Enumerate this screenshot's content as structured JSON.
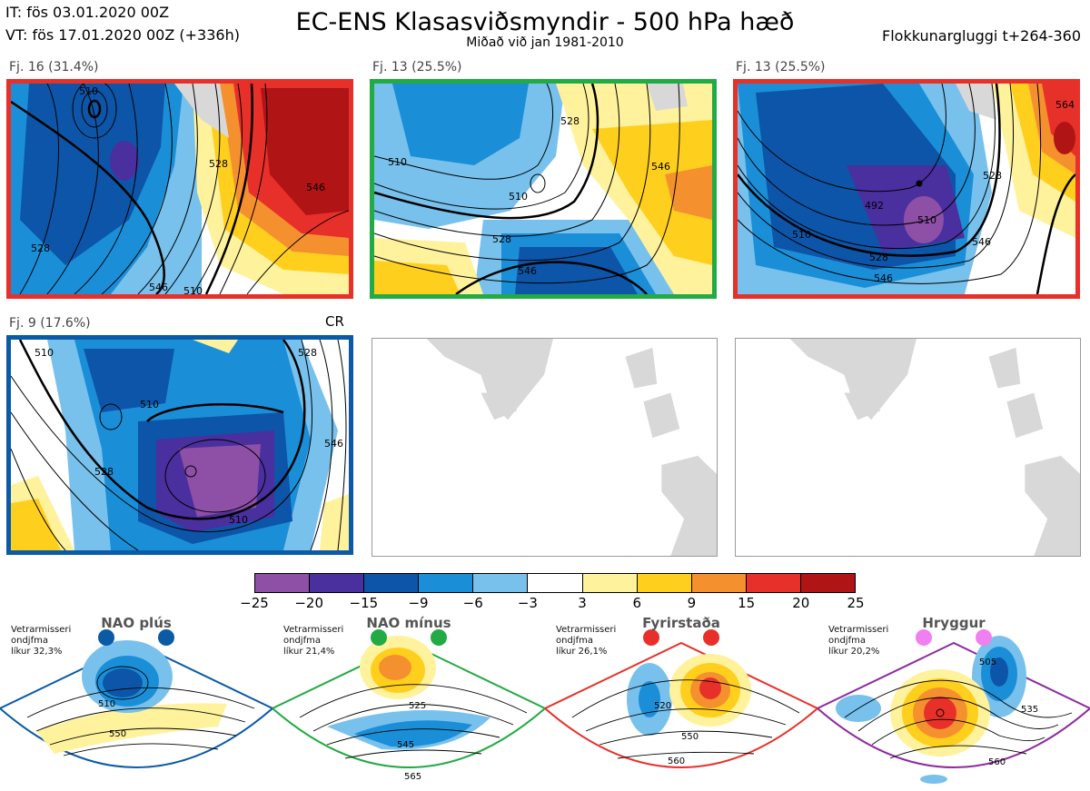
{
  "header": {
    "init": "IT: fös 03.01.2020 00Z",
    "valid": "VT: fös 17.01.2020 00Z  (+336h)",
    "title": "EC-ENS Klasasviðsmyndir - 500 hPa hæð",
    "subtitle": "Miðað við jan 1981-2010",
    "window": "Flokkunargluggi t+264-360"
  },
  "panels": [
    {
      "label": "Fj. 16 (31.4%)",
      "border_color": "#e8302a",
      "contour_labels": [
        "510",
        "528",
        "546",
        "528",
        "546",
        "510"
      ]
    },
    {
      "label": "Fj. 13 (25.5%)",
      "border_color": "#22aa44",
      "contour_labels": [
        "510",
        "528",
        "546",
        "510",
        "528",
        "546"
      ]
    },
    {
      "label": "Fj. 13 (25.5%)",
      "border_color": "#e8302a",
      "contour_labels": [
        "492",
        "510",
        "528",
        "546",
        "510",
        "546",
        "528",
        "564"
      ]
    },
    {
      "label": "Fj. 9 (17.6%)",
      "border_color": "#0a5aa6",
      "contour_labels": [
        "510",
        "528",
        "510",
        "528",
        "546",
        "510"
      ]
    }
  ],
  "cr_label": "CR",
  "colorbar": {
    "colors": [
      "#8e4fa7",
      "#4a2f9e",
      "#0d55a8",
      "#1a8fd8",
      "#78c1ec",
      "#ffffff",
      "#fff29c",
      "#ffcf1e",
      "#f5902e",
      "#e8302a",
      "#b01414"
    ],
    "ticks": [
      "−25",
      "−20",
      "−15",
      "−9",
      "−6",
      "−3",
      "3",
      "6",
      "9",
      "15",
      "20",
      "25"
    ]
  },
  "regimes": [
    {
      "name": "NAO plús",
      "info": "Vetrarmisseri\nondjfma\nlíkur 32,3%",
      "border_color": "#0a5aa6",
      "dot_color": "#0a5aa6",
      "contour_labels": [
        "510",
        "550"
      ]
    },
    {
      "name": "NAO mínus",
      "info": "Vetrarmisseri\nondjfma\nlíkur 21,4%",
      "border_color": "#22aa44",
      "dot_color": "#22aa44",
      "contour_labels": [
        "525",
        "545",
        "565"
      ]
    },
    {
      "name": "Fyrirstaða",
      "info": "Vetrarmisseri\nondjfma\nlíkur 26,1%",
      "border_color": "#e8302a",
      "dot_color": "#e8302a",
      "contour_labels": [
        "520",
        "550",
        "560"
      ]
    },
    {
      "name": "Hryggur",
      "info": "Vetrarmisseri\nondjfma\nlíkur 20,2%",
      "border_color": "#8e2aa0",
      "dot_color": "#f080f0",
      "contour_labels": [
        "505",
        "535",
        "560"
      ]
    }
  ]
}
